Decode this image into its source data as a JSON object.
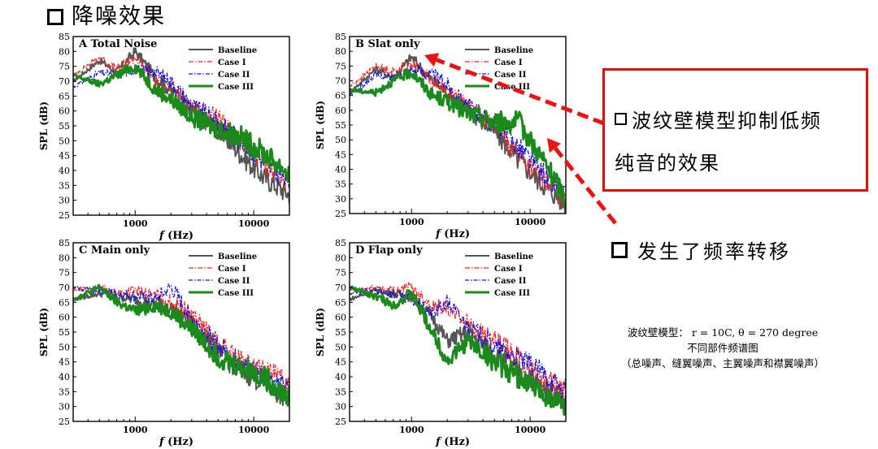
{
  "heading": {
    "text": "降噪效果"
  },
  "callout": {
    "line1": "波纹壁模型抑制低频",
    "line2": "纯音的效果"
  },
  "shift_note": {
    "text": "发生了频率转移"
  },
  "caption": {
    "line1": "波纹壁模型： r = 10C, θ = 270 degree",
    "line2": "不同部件频谱图",
    "line3": "（总噪声、缝翼噪声、主翼噪声和襟翼噪声）"
  },
  "colors": {
    "baseline": "#555555",
    "case1": "#ff2020",
    "case2": "#1010e0",
    "case3": "#1a8a1a",
    "arrow": "#ee1111"
  },
  "chart_data": [
    {
      "type": "line",
      "panel": "A",
      "title": "A  Total Noise",
      "xlabel": "f (Hz)",
      "ylabel": "SPL (dB)",
      "xscale": "log",
      "xlim": [
        300,
        20000
      ],
      "ylim": [
        25,
        85
      ],
      "yticks": [
        25,
        30,
        35,
        40,
        45,
        50,
        55,
        60,
        65,
        70,
        75,
        80,
        85
      ],
      "xticks": [
        1000,
        10000
      ],
      "legend": "top-right",
      "series": [
        {
          "name": "Baseline",
          "x": [
            300,
            500,
            700,
            1000,
            1500,
            2000,
            3000,
            5000,
            8000,
            12000,
            20000
          ],
          "y": [
            70,
            77,
            73,
            80,
            71,
            67,
            60,
            54,
            45,
            38,
            32
          ]
        },
        {
          "name": "Case I",
          "x": [
            300,
            500,
            700,
            1000,
            1500,
            2000,
            3000,
            5000,
            8000,
            12000,
            20000
          ],
          "y": [
            72,
            78,
            74,
            78,
            70,
            68,
            62,
            57,
            49,
            43,
            35
          ]
        },
        {
          "name": "Case II",
          "x": [
            300,
            500,
            700,
            1000,
            1500,
            2000,
            3000,
            5000,
            8000,
            12000,
            20000
          ],
          "y": [
            68,
            73,
            72,
            74,
            73,
            70,
            62,
            56,
            50,
            43,
            36
          ]
        },
        {
          "name": "Case III",
          "x": [
            300,
            500,
            700,
            1000,
            1500,
            2000,
            3000,
            5000,
            8000,
            12000,
            20000
          ],
          "y": [
            72,
            69,
            72,
            75,
            67,
            64,
            58,
            54,
            51,
            46,
            39
          ]
        }
      ]
    },
    {
      "type": "line",
      "panel": "B",
      "title": "B  Slat only",
      "xlabel": "f (Hz)",
      "ylabel": "SPL (dB)",
      "xscale": "log",
      "xlim": [
        300,
        20000
      ],
      "ylim": [
        25,
        85
      ],
      "yticks": [
        25,
        30,
        35,
        40,
        45,
        50,
        55,
        60,
        65,
        70,
        75,
        80,
        85
      ],
      "xticks": [
        1000,
        10000
      ],
      "legend": "top-right",
      "series": [
        {
          "name": "Baseline",
          "x": [
            300,
            500,
            700,
            1000,
            1500,
            2000,
            3000,
            5000,
            8000,
            12000,
            20000
          ],
          "y": [
            66,
            74,
            71,
            78,
            70,
            66,
            60,
            53,
            43,
            36,
            28
          ]
        },
        {
          "name": "Case I",
          "x": [
            300,
            500,
            700,
            1000,
            1500,
            2000,
            3000,
            5000,
            8000,
            12000,
            20000
          ],
          "y": [
            68,
            75,
            73,
            76,
            70,
            67,
            61,
            55,
            45,
            38,
            30
          ]
        },
        {
          "name": "Case II",
          "x": [
            300,
            500,
            700,
            1000,
            1500,
            2000,
            3000,
            5000,
            8000,
            12000,
            20000
          ],
          "y": [
            65,
            72,
            71,
            74,
            72,
            69,
            61,
            56,
            48,
            40,
            31
          ]
        },
        {
          "name": "Case III",
          "x": [
            300,
            500,
            700,
            1000,
            1500,
            2000,
            3000,
            5000,
            8000,
            12000,
            20000
          ],
          "y": [
            67,
            66,
            70,
            73,
            65,
            63,
            59,
            56,
            56,
            45,
            30
          ]
        }
      ]
    },
    {
      "type": "line",
      "panel": "C",
      "title": "C  Main only",
      "xlabel": "f (Hz)",
      "ylabel": "SPL (dB)",
      "xscale": "log",
      "xlim": [
        300,
        20000
      ],
      "ylim": [
        25,
        85
      ],
      "yticks": [
        25,
        30,
        35,
        40,
        45,
        50,
        55,
        60,
        65,
        70,
        75,
        80,
        85
      ],
      "xticks": [
        1000,
        10000
      ],
      "legend": "top-right",
      "series": [
        {
          "name": "Baseline",
          "x": [
            300,
            500,
            700,
            1000,
            1500,
            2000,
            3000,
            5000,
            8000,
            12000,
            20000
          ],
          "y": [
            66,
            68,
            67,
            66,
            64,
            63,
            58,
            48,
            42,
            38,
            32
          ]
        },
        {
          "name": "Case I",
          "x": [
            300,
            500,
            700,
            1000,
            1500,
            2000,
            3000,
            5000,
            8000,
            12000,
            20000
          ],
          "y": [
            69,
            70,
            68,
            69,
            67,
            65,
            61,
            51,
            45,
            42,
            38
          ]
        },
        {
          "name": "Case II",
          "x": [
            300,
            500,
            700,
            1000,
            1500,
            2000,
            3000,
            5000,
            8000,
            12000,
            20000
          ],
          "y": [
            70,
            69,
            68,
            67,
            66,
            70,
            60,
            50,
            44,
            41,
            35
          ]
        },
        {
          "name": "Case III",
          "x": [
            300,
            500,
            700,
            1000,
            1500,
            2000,
            3000,
            5000,
            8000,
            12000,
            20000
          ],
          "y": [
            66,
            70,
            65,
            62,
            64,
            62,
            56,
            47,
            43,
            40,
            33
          ]
        }
      ]
    },
    {
      "type": "line",
      "panel": "D",
      "title": "D  Flap only",
      "xlabel": "f (Hz)",
      "ylabel": "SPL (dB)",
      "xscale": "log",
      "xlim": [
        300,
        20000
      ],
      "ylim": [
        25,
        85
      ],
      "yticks": [
        25,
        30,
        35,
        40,
        45,
        50,
        55,
        60,
        65,
        70,
        75,
        80,
        85
      ],
      "xticks": [
        1000,
        10000
      ],
      "legend": "top-right",
      "series": [
        {
          "name": "Baseline",
          "x": [
            300,
            500,
            700,
            1000,
            1500,
            2000,
            3000,
            5000,
            8000,
            12000,
            20000
          ],
          "y": [
            66,
            69,
            68,
            67,
            60,
            52,
            55,
            48,
            42,
            37,
            32
          ]
        },
        {
          "name": "Case I",
          "x": [
            300,
            500,
            700,
            1000,
            1500,
            2000,
            3000,
            5000,
            8000,
            12000,
            20000
          ],
          "y": [
            69,
            70,
            69,
            70,
            64,
            63,
            58,
            52,
            46,
            40,
            36
          ]
        },
        {
          "name": "Case II",
          "x": [
            300,
            500,
            700,
            1000,
            1500,
            2000,
            3000,
            5000,
            8000,
            12000,
            20000
          ],
          "y": [
            68,
            69,
            68,
            66,
            61,
            65,
            57,
            50,
            46,
            42,
            35
          ]
        },
        {
          "name": "Case III",
          "x": [
            300,
            500,
            700,
            1000,
            1500,
            2000,
            3000,
            5000,
            8000,
            12000,
            20000
          ],
          "y": [
            70,
            67,
            64,
            68,
            55,
            45,
            52,
            45,
            40,
            35,
            30
          ]
        }
      ]
    }
  ]
}
